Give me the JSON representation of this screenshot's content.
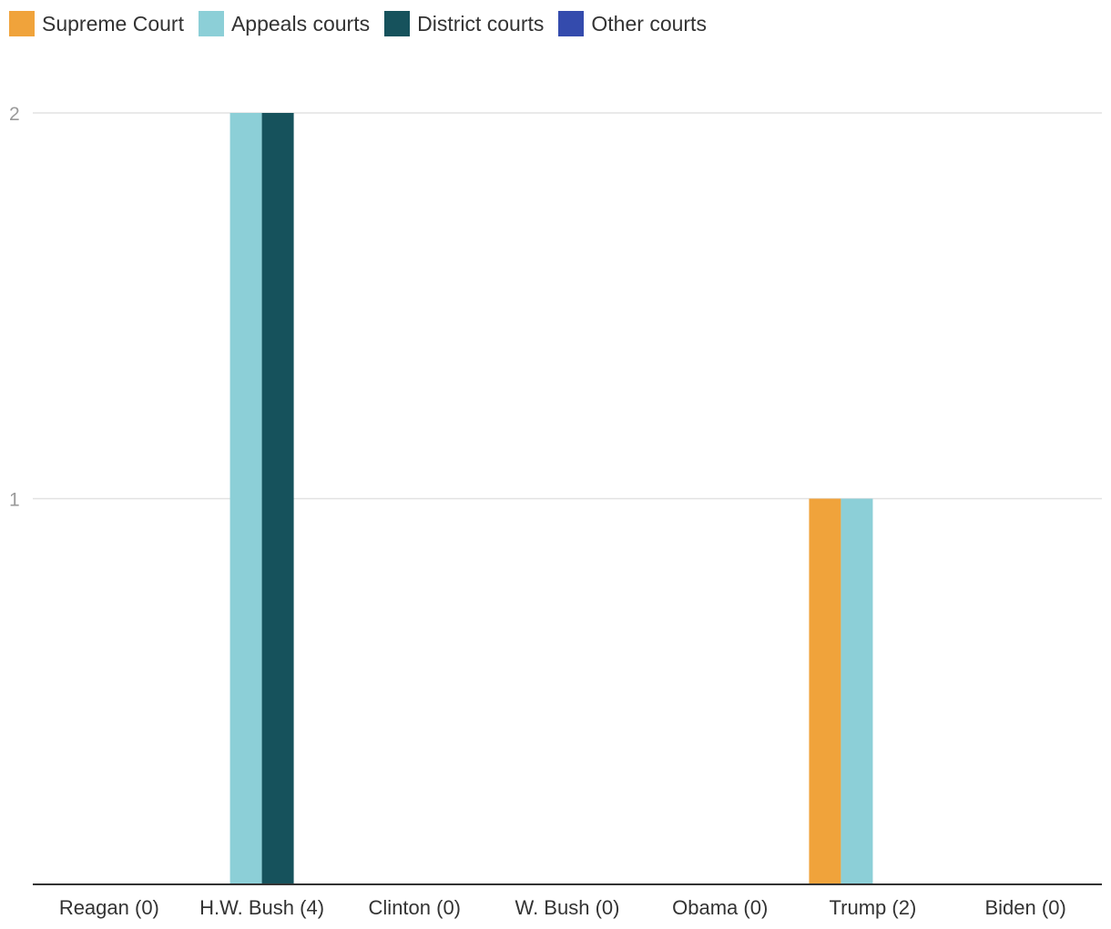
{
  "chart_data": {
    "type": "bar",
    "categories": [
      "Reagan (0)",
      "H.W. Bush (4)",
      "Clinton (0)",
      "W. Bush (0)",
      "Obama (0)",
      "Trump (2)",
      "Biden (0)"
    ],
    "series": [
      {
        "name": "Supreme Court",
        "color": "#f0a33b",
        "values": [
          0,
          0,
          0,
          0,
          0,
          1,
          0
        ]
      },
      {
        "name": "Appeals courts",
        "color": "#8ccfd7",
        "values": [
          0,
          2,
          0,
          0,
          0,
          1,
          0
        ]
      },
      {
        "name": "District courts",
        "color": "#16525c",
        "values": [
          0,
          2,
          0,
          0,
          0,
          0,
          0
        ]
      },
      {
        "name": "Other courts",
        "color": "#344bad",
        "values": [
          0,
          0,
          0,
          0,
          0,
          0,
          0
        ]
      }
    ],
    "ylim": [
      0,
      2
    ],
    "yticks": [
      1,
      2
    ],
    "grid": true,
    "legend_position": "top-left",
    "title": "",
    "xlabel": "",
    "ylabel": ""
  }
}
